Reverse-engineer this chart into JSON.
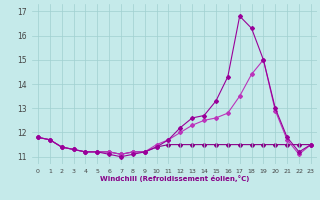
{
  "xlabel": "Windchill (Refroidissement éolien,°C)",
  "xlim": [
    -0.5,
    23.5
  ],
  "ylim": [
    10.7,
    17.3
  ],
  "yticks": [
    11,
    12,
    13,
    14,
    15,
    16,
    17
  ],
  "xticks": [
    0,
    1,
    2,
    3,
    4,
    5,
    6,
    7,
    8,
    9,
    10,
    11,
    12,
    13,
    14,
    15,
    16,
    17,
    18,
    19,
    20,
    21,
    22,
    23
  ],
  "bg_color": "#c5eaea",
  "line_color1": "#990099",
  "line_color2": "#bb33bb",
  "line_color3": "#880088",
  "grid_color": "#a0d0d0",
  "line1_y": [
    11.8,
    11.7,
    11.4,
    11.3,
    11.2,
    11.2,
    11.1,
    11.0,
    11.1,
    11.2,
    11.4,
    11.7,
    12.2,
    12.6,
    12.7,
    13.3,
    14.3,
    16.8,
    16.3,
    15.0,
    13.0,
    11.8,
    11.2,
    11.5
  ],
  "line2_y": [
    11.8,
    11.7,
    11.4,
    11.3,
    11.2,
    11.2,
    11.2,
    11.1,
    11.2,
    11.2,
    11.5,
    11.7,
    12.0,
    12.3,
    12.5,
    12.6,
    12.8,
    13.5,
    14.4,
    15.0,
    12.9,
    11.7,
    11.1,
    11.5
  ],
  "line3_y": [
    11.8,
    11.7,
    11.4,
    11.3,
    11.2,
    11.2,
    11.2,
    11.1,
    11.2,
    11.2,
    11.4,
    11.5,
    11.5,
    11.5,
    11.5,
    11.5,
    11.5,
    11.5,
    11.5,
    11.5,
    11.5,
    11.5,
    11.5,
    11.5
  ]
}
